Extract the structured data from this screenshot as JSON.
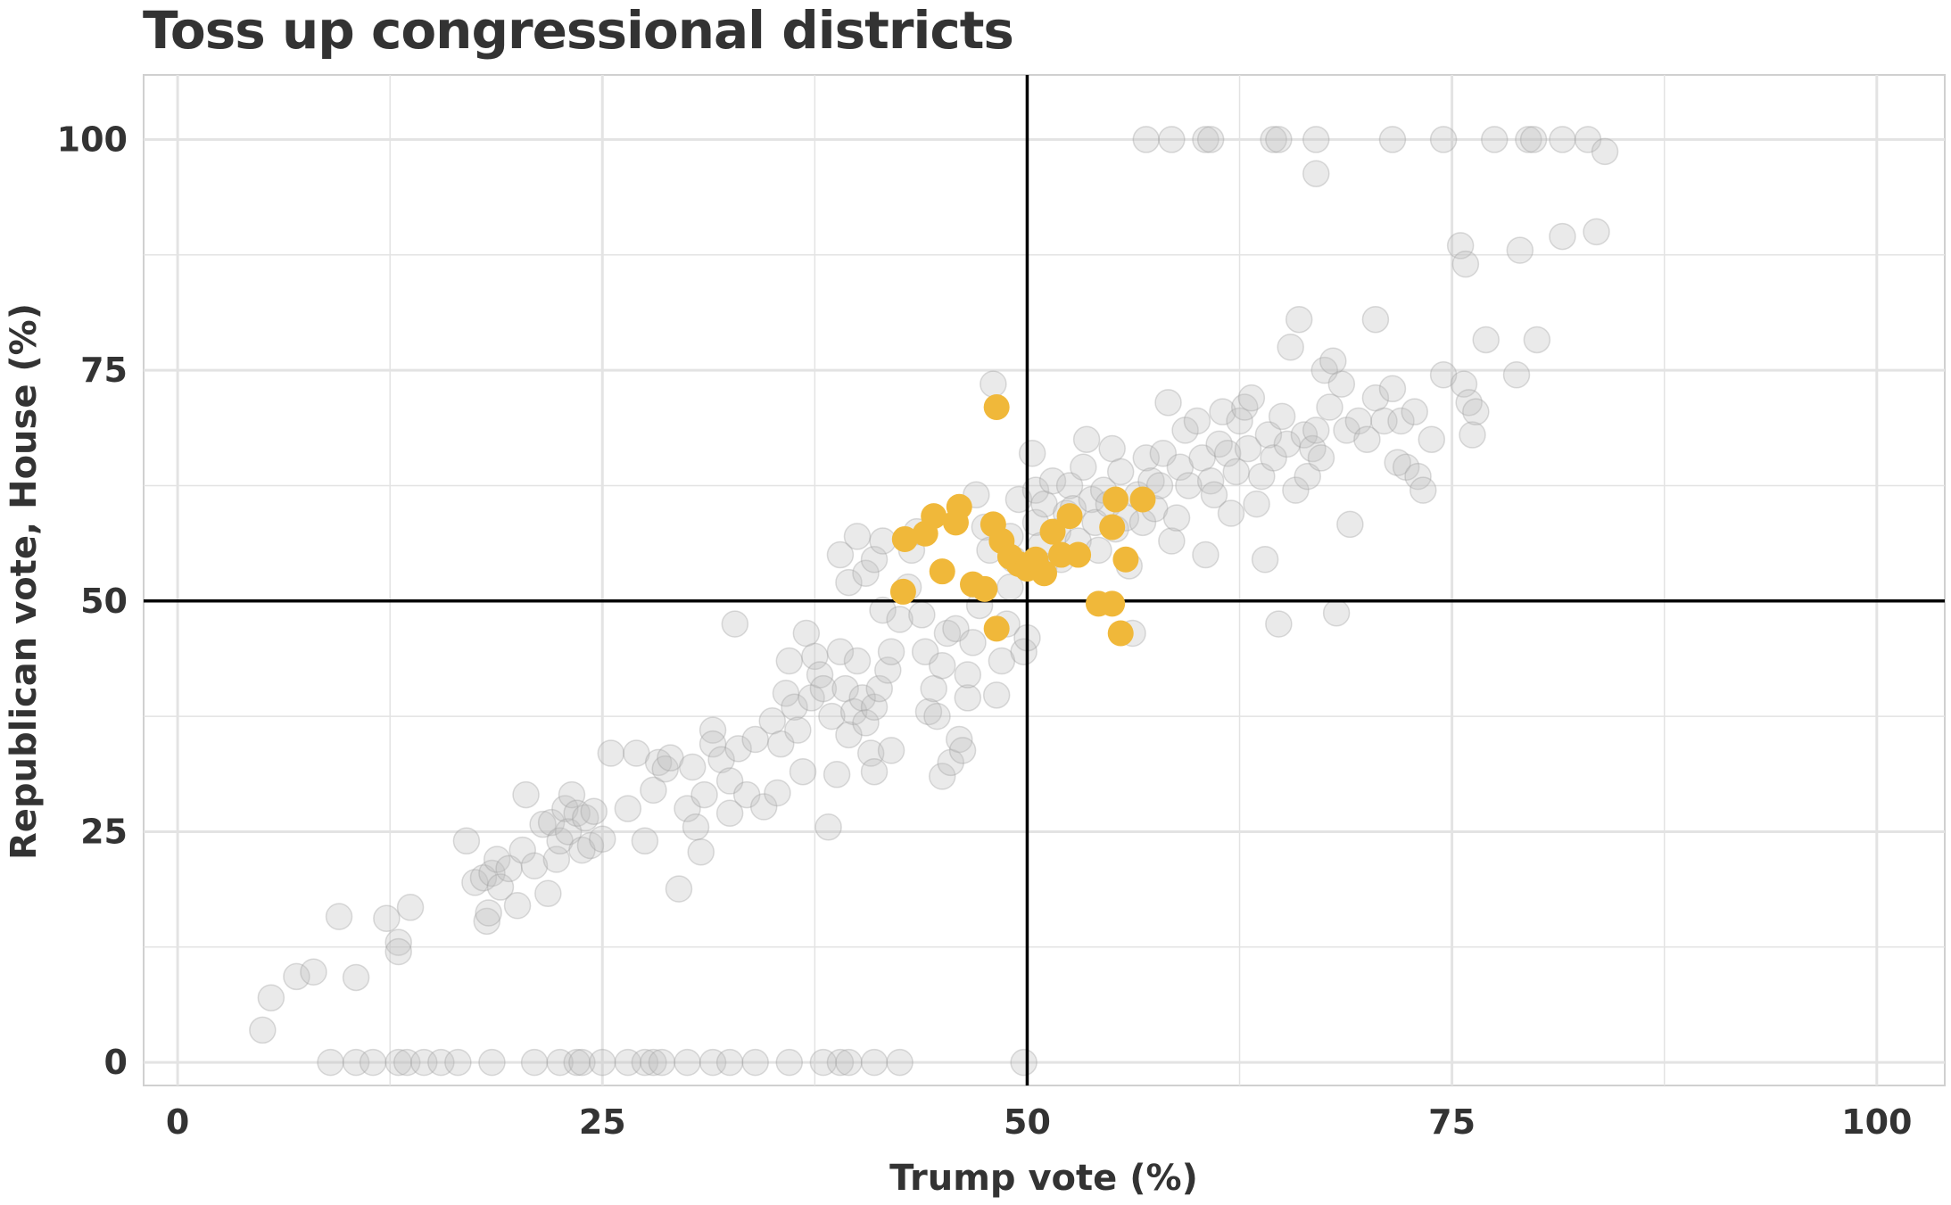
{
  "chart_data": {
    "type": "scatter",
    "title": "Toss up congressional districts",
    "xlabel": "Trump vote (%)",
    "ylabel": "Republican vote, House (%)",
    "xlim": [
      -2,
      104
    ],
    "ylim": [
      -2.5,
      107
    ],
    "xticks": [
      0,
      25,
      50,
      75,
      100
    ],
    "yticks": [
      0,
      25,
      50,
      75,
      100
    ],
    "grid": true,
    "reference_lines": {
      "x": 50,
      "y": 50
    },
    "colors": {
      "other": "#bdbdbd",
      "toss_up": "#f0b83a",
      "reference": "#000000",
      "grid": "#e3e3e3"
    },
    "series": [
      {
        "points": [
          [
            5,
            3.5
          ],
          [
            5.5,
            7
          ],
          [
            7,
            9.3
          ],
          [
            8,
            9.8
          ],
          [
            10.5,
            9.2
          ],
          [
            9.5,
            15.8
          ],
          [
            12.3,
            15.6
          ],
          [
            13,
            13
          ],
          [
            13,
            12
          ],
          [
            13.7,
            16.8
          ],
          [
            17,
            24
          ],
          [
            17.5,
            19.5
          ],
          [
            18,
            20
          ],
          [
            18.2,
            15.3
          ],
          [
            18.3,
            16.2
          ],
          [
            18.5,
            20.5
          ],
          [
            18.8,
            22
          ],
          [
            19,
            19
          ],
          [
            19.5,
            21
          ],
          [
            20,
            17
          ],
          [
            20.3,
            23
          ],
          [
            20.5,
            29
          ],
          [
            21,
            21.3
          ],
          [
            21.5,
            25.8
          ],
          [
            21.8,
            18.3
          ],
          [
            22,
            26
          ],
          [
            22.3,
            22
          ],
          [
            22.5,
            24
          ],
          [
            22.8,
            27.5
          ],
          [
            23,
            25
          ],
          [
            23.2,
            29
          ],
          [
            23.5,
            27
          ],
          [
            23.8,
            23
          ],
          [
            24,
            26.5
          ],
          [
            24.3,
            23.5
          ],
          [
            24.5,
            27.2
          ],
          [
            25,
            24.2
          ],
          [
            25.5,
            33.5
          ],
          [
            26.5,
            27.5
          ],
          [
            27,
            33.5
          ],
          [
            27.5,
            24
          ],
          [
            28,
            29.5
          ],
          [
            28.3,
            32.5
          ],
          [
            28.7,
            31.8
          ],
          [
            29,
            33
          ],
          [
            29.5,
            18.8
          ],
          [
            30,
            27.5
          ],
          [
            30.3,
            32
          ],
          [
            30.5,
            25.5
          ],
          [
            30.8,
            22.8
          ],
          [
            31,
            29
          ],
          [
            31.5,
            36
          ],
          [
            31.5,
            34.5
          ],
          [
            32,
            32.8
          ],
          [
            32.5,
            27
          ],
          [
            32.5,
            30.5
          ],
          [
            32.8,
            47.5
          ],
          [
            33,
            34
          ],
          [
            33.5,
            29
          ],
          [
            34,
            35
          ],
          [
            34.5,
            27.7
          ],
          [
            35,
            37
          ],
          [
            35.3,
            29.2
          ],
          [
            35.5,
            34.5
          ],
          [
            35.8,
            40
          ],
          [
            36,
            43.5
          ],
          [
            36.3,
            38.5
          ],
          [
            36.5,
            36
          ],
          [
            36.8,
            31.5
          ],
          [
            37,
            46.5
          ],
          [
            37.5,
            44
          ],
          [
            37.3,
            39.5
          ],
          [
            37.8,
            42
          ],
          [
            38,
            40.5
          ],
          [
            38.3,
            25.5
          ],
          [
            38.5,
            37.5
          ],
          [
            38.8,
            31.2
          ],
          [
            39,
            44.5
          ],
          [
            39.3,
            40.5
          ],
          [
            39.5,
            35.5
          ],
          [
            39.8,
            38
          ],
          [
            40,
            43.5
          ],
          [
            40.3,
            39.5
          ],
          [
            40.5,
            36.8
          ],
          [
            40.8,
            33.5
          ],
          [
            41,
            38.5
          ],
          [
            41,
            31.5
          ],
          [
            41.3,
            40.5
          ],
          [
            41.5,
            49
          ],
          [
            41.8,
            42.5
          ],
          [
            39,
            55
          ],
          [
            39.5,
            52
          ],
          [
            40,
            57
          ],
          [
            40.5,
            53
          ],
          [
            41,
            54.5
          ],
          [
            41.5,
            56.5
          ],
          [
            42,
            44.5
          ],
          [
            42,
            33.8
          ],
          [
            42.5,
            48
          ],
          [
            43,
            51.5
          ],
          [
            43.2,
            55.5
          ],
          [
            43.5,
            57.5
          ],
          [
            43.8,
            48.5
          ],
          [
            44,
            44.5
          ],
          [
            44.2,
            38
          ],
          [
            44.5,
            40.5
          ],
          [
            44.7,
            37.5
          ],
          [
            45,
            43
          ],
          [
            45,
            31
          ],
          [
            45.3,
            46.5
          ],
          [
            45.5,
            32.5
          ],
          [
            45.8,
            47
          ],
          [
            46,
            35
          ],
          [
            46.2,
            33.8
          ],
          [
            46.5,
            39.5
          ],
          [
            46.5,
            42
          ],
          [
            46.8,
            45.5
          ],
          [
            47,
            61.5
          ],
          [
            47.2,
            49.5
          ],
          [
            47.5,
            58
          ],
          [
            47.8,
            55.5
          ],
          [
            48,
            73.5
          ],
          [
            48.2,
            39.8
          ],
          [
            48.5,
            43.5
          ],
          [
            48.8,
            47.5
          ],
          [
            49,
            51.5
          ],
          [
            49,
            57
          ],
          [
            49.2,
            54.5
          ],
          [
            49.5,
            61
          ],
          [
            49.8,
            44.5
          ],
          [
            50,
            46
          ],
          [
            50.3,
            66
          ],
          [
            50.5,
            62
          ],
          [
            50.5,
            58.5
          ],
          [
            50.8,
            56
          ],
          [
            51,
            60.5
          ],
          [
            51,
            53.8
          ],
          [
            51.5,
            63
          ],
          [
            51.8,
            57.5
          ],
          [
            52,
            54.5
          ],
          [
            52.3,
            59.5
          ],
          [
            52.5,
            62.5
          ],
          [
            52.7,
            60
          ],
          [
            53,
            56.5
          ],
          [
            53.3,
            64.5
          ],
          [
            53.5,
            67.5
          ],
          [
            53.8,
            61
          ],
          [
            54,
            58.5
          ],
          [
            54.2,
            55.5
          ],
          [
            54.5,
            62
          ],
          [
            54.8,
            60.5
          ],
          [
            55,
            66.5
          ],
          [
            55.2,
            57.8
          ],
          [
            55.5,
            64
          ],
          [
            55.8,
            59
          ],
          [
            56,
            53.8
          ],
          [
            56.2,
            46.5
          ],
          [
            56.5,
            61.5
          ],
          [
            56.8,
            58.5
          ],
          [
            57,
            65.5
          ],
          [
            57.3,
            63
          ],
          [
            57.5,
            60
          ],
          [
            57.8,
            62.5
          ],
          [
            58,
            66
          ],
          [
            58.3,
            71.5
          ],
          [
            58.5,
            56.5
          ],
          [
            58.8,
            59
          ],
          [
            59,
            64.5
          ],
          [
            59.3,
            68.5
          ],
          [
            59.5,
            62.5
          ],
          [
            60,
            69.5
          ],
          [
            60.3,
            65.5
          ],
          [
            60.5,
            55
          ],
          [
            60.8,
            63
          ],
          [
            61,
            61.5
          ],
          [
            61.3,
            67
          ],
          [
            61.5,
            70.5
          ],
          [
            61.8,
            66
          ],
          [
            62,
            59.5
          ],
          [
            62.3,
            64
          ],
          [
            62.5,
            69.5
          ],
          [
            62.8,
            71
          ],
          [
            63,
            66.5
          ],
          [
            63.2,
            72
          ],
          [
            63.5,
            60.5
          ],
          [
            63.8,
            63.5
          ],
          [
            64,
            54.5
          ],
          [
            64.2,
            68
          ],
          [
            64.5,
            65.5
          ],
          [
            64.8,
            47.5
          ],
          [
            65,
            70
          ],
          [
            65.3,
            67
          ],
          [
            65.5,
            77.5
          ],
          [
            65.8,
            62
          ],
          [
            66,
            80.5
          ],
          [
            66.3,
            68
          ],
          [
            66.5,
            63.5
          ],
          [
            66.8,
            66.5
          ],
          [
            67,
            68.5
          ],
          [
            67.3,
            65.5
          ],
          [
            67.5,
            75
          ],
          [
            67.8,
            71
          ],
          [
            68,
            76
          ],
          [
            68.2,
            48.7
          ],
          [
            68.5,
            73.5
          ],
          [
            68.8,
            68.5
          ],
          [
            69,
            58.3
          ],
          [
            69.5,
            69.5
          ],
          [
            70,
            67.5
          ],
          [
            70.5,
            80.5
          ],
          [
            70.5,
            72
          ],
          [
            71,
            69.5
          ],
          [
            71.5,
            73
          ],
          [
            71.8,
            65
          ],
          [
            72,
            69.5
          ],
          [
            72.3,
            64.5
          ],
          [
            72.8,
            70.5
          ],
          [
            73,
            63.5
          ],
          [
            73.3,
            62
          ],
          [
            73.8,
            67.5
          ],
          [
            74.5,
            74.5
          ],
          [
            75.5,
            88.5
          ],
          [
            75.8,
            86.5
          ],
          [
            75.7,
            73.5
          ],
          [
            76,
            71.5
          ],
          [
            76.2,
            68
          ],
          [
            76.4,
            70.5
          ],
          [
            77,
            78.3
          ],
          [
            78.8,
            74.5
          ],
          [
            79,
            88
          ],
          [
            80,
            78.3
          ],
          [
            81.5,
            89.5
          ],
          [
            83.5,
            90
          ],
          [
            57,
            100
          ],
          [
            58.5,
            100
          ],
          [
            60.5,
            100
          ],
          [
            60.8,
            100
          ],
          [
            64.5,
            100
          ],
          [
            64.8,
            100
          ],
          [
            67,
            100
          ],
          [
            67,
            96.3
          ],
          [
            71.5,
            100
          ],
          [
            74.5,
            100
          ],
          [
            77.5,
            100
          ],
          [
            79.5,
            100
          ],
          [
            79.8,
            100
          ],
          [
            81.5,
            100
          ],
          [
            83,
            100
          ],
          [
            84,
            98.7
          ],
          [
            9,
            0
          ],
          [
            10.5,
            0
          ],
          [
            11.5,
            0
          ],
          [
            13,
            0
          ],
          [
            13.5,
            0
          ],
          [
            14.5,
            0
          ],
          [
            15.5,
            0
          ],
          [
            16.5,
            0
          ],
          [
            18.5,
            0
          ],
          [
            21,
            0
          ],
          [
            22.5,
            0
          ],
          [
            23.5,
            0
          ],
          [
            23.8,
            0
          ],
          [
            25,
            0
          ],
          [
            26.5,
            0
          ],
          [
            27.5,
            0
          ],
          [
            28,
            0
          ],
          [
            28.5,
            0
          ],
          [
            30,
            0
          ],
          [
            31.5,
            0
          ],
          [
            32.5,
            0
          ],
          [
            34,
            0
          ],
          [
            36,
            0
          ],
          [
            38,
            0
          ],
          [
            39,
            0
          ],
          [
            39.5,
            0
          ],
          [
            41,
            0
          ],
          [
            42.5,
            0
          ],
          [
            49.8,
            0
          ]
        ]
      },
      {
        "points": [
          [
            48.2,
            71
          ],
          [
            42.8,
            56.7
          ],
          [
            44,
            57.3
          ],
          [
            44.5,
            59.2
          ],
          [
            45.8,
            58.5
          ],
          [
            46,
            60.2
          ],
          [
            45,
            53.2
          ],
          [
            46.8,
            51.8
          ],
          [
            47.5,
            51.3
          ],
          [
            42.7,
            51
          ],
          [
            48,
            58.3
          ],
          [
            48.5,
            56.5
          ],
          [
            49,
            54.8
          ],
          [
            49.5,
            54
          ],
          [
            50,
            53.5
          ],
          [
            50.5,
            54.5
          ],
          [
            51,
            53
          ],
          [
            51.5,
            57.5
          ],
          [
            52,
            55
          ],
          [
            52.5,
            59.2
          ],
          [
            53,
            55
          ],
          [
            54.2,
            49.7
          ],
          [
            55,
            49.7
          ],
          [
            55,
            58
          ],
          [
            55.2,
            61
          ],
          [
            55.8,
            54.5
          ],
          [
            56.8,
            61
          ],
          [
            55.5,
            46.5
          ],
          [
            48.2,
            47
          ]
        ]
      }
    ]
  }
}
